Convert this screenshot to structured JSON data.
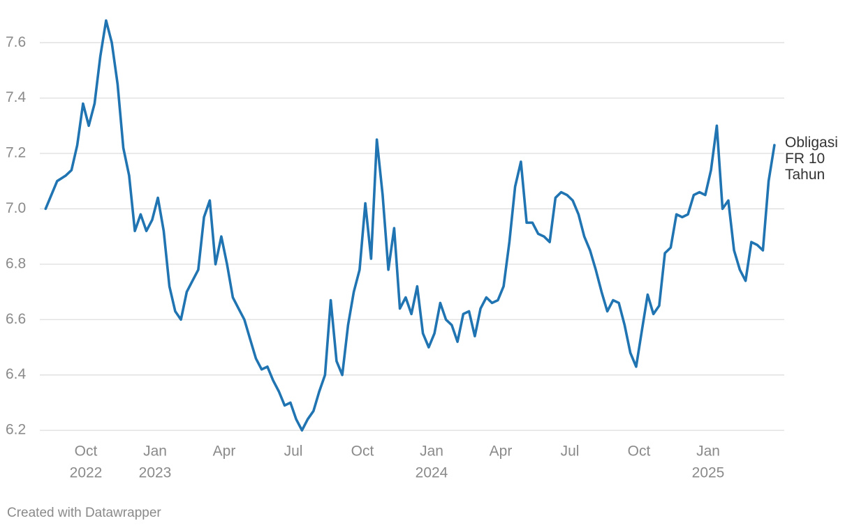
{
  "chart_data": {
    "type": "line",
    "x": [
      "2022-08",
      "2022-08",
      "2022-09",
      "2022-09",
      "2022-09",
      "2022-09",
      "2022-10",
      "2022-10",
      "2022-10",
      "2022-10",
      "2022-11",
      "2022-11",
      "2022-11",
      "2022-11",
      "2022-12",
      "2022-12",
      "2022-12",
      "2022-12",
      "2023-01",
      "2023-01",
      "2023-01",
      "2023-01",
      "2023-02",
      "2023-02",
      "2023-02",
      "2023-02",
      "2023-03",
      "2023-03",
      "2023-03",
      "2023-03",
      "2023-04",
      "2023-04",
      "2023-04",
      "2023-04",
      "2023-05",
      "2023-05",
      "2023-05",
      "2023-05",
      "2023-06",
      "2023-06",
      "2023-06",
      "2023-06",
      "2023-07",
      "2023-07",
      "2023-07",
      "2023-07",
      "2023-08",
      "2023-08",
      "2023-08",
      "2023-08",
      "2023-09",
      "2023-09",
      "2023-09",
      "2023-09",
      "2023-10",
      "2023-10",
      "2023-10",
      "2023-10",
      "2023-11",
      "2023-11",
      "2023-11",
      "2023-11",
      "2023-12",
      "2023-12",
      "2023-12",
      "2023-12",
      "2024-01",
      "2024-01",
      "2024-01",
      "2024-01",
      "2024-02",
      "2024-02",
      "2024-02",
      "2024-02",
      "2024-03",
      "2024-03",
      "2024-03",
      "2024-03",
      "2024-04",
      "2024-04",
      "2024-04",
      "2024-04",
      "2024-05",
      "2024-05",
      "2024-05",
      "2024-05",
      "2024-06",
      "2024-06",
      "2024-06",
      "2024-06",
      "2024-07",
      "2024-07",
      "2024-07",
      "2024-07",
      "2024-08",
      "2024-08",
      "2024-08",
      "2024-08",
      "2024-09",
      "2024-09",
      "2024-09",
      "2024-09",
      "2024-10",
      "2024-10",
      "2024-10",
      "2024-10",
      "2024-11",
      "2024-11",
      "2024-11",
      "2024-11",
      "2024-12",
      "2024-12",
      "2024-12",
      "2024-12",
      "2025-01",
      "2025-01",
      "2025-01",
      "2025-01",
      "2025-02",
      "2025-02",
      "2025-02",
      "2025-02",
      "2025-03",
      "2025-03",
      "2025-03",
      "2025-03"
    ],
    "series": [
      {
        "name": "Obligasi FR 10 Tahun",
        "color": "#1f74b1",
        "values": [
          7.0,
          7.1,
          7.12,
          7.14,
          7.23,
          7.38,
          7.3,
          7.38,
          7.55,
          7.68,
          7.6,
          7.45,
          7.22,
          7.12,
          6.92,
          6.98,
          6.92,
          6.96,
          7.04,
          6.92,
          6.72,
          6.63,
          6.6,
          6.7,
          6.74,
          6.78,
          6.97,
          7.03,
          6.8,
          6.9,
          6.8,
          6.68,
          6.64,
          6.6,
          6.53,
          6.46,
          6.42,
          6.43,
          6.38,
          6.34,
          6.29,
          6.3,
          6.24,
          6.2,
          6.24,
          6.27,
          6.34,
          6.4,
          6.67,
          6.45,
          6.4,
          6.58,
          6.7,
          6.78,
          7.02,
          6.82,
          7.25,
          7.05,
          6.78,
          6.93,
          6.64,
          6.68,
          6.62,
          6.72,
          6.55,
          6.5,
          6.55,
          6.66,
          6.6,
          6.58,
          6.52,
          6.62,
          6.63,
          6.54,
          6.64,
          6.68,
          6.66,
          6.67,
          6.72,
          6.88,
          7.08,
          7.17,
          6.95,
          6.95,
          6.91,
          6.9,
          6.88,
          7.04,
          7.06,
          7.05,
          7.03,
          6.98,
          6.9,
          6.85,
          6.78,
          6.7,
          6.63,
          6.67,
          6.66,
          6.58,
          6.48,
          6.43,
          6.56,
          6.69,
          6.62,
          6.65,
          6.84,
          6.86,
          6.98,
          6.97,
          6.98,
          7.05,
          7.06,
          7.05,
          7.14,
          7.3,
          7.0,
          7.03,
          6.85,
          6.78,
          6.74,
          6.88,
          6.87,
          6.85,
          7.1,
          7.23
        ]
      }
    ],
    "xlim": [
      "2022-08",
      "2025-03"
    ],
    "xticks": [
      {
        "value": "2022-10",
        "label": [
          "Oct",
          "2022"
        ]
      },
      {
        "value": "2023-01",
        "label": [
          "Jan",
          "2023"
        ]
      },
      {
        "value": "2023-04",
        "label": [
          "Apr"
        ]
      },
      {
        "value": "2023-07",
        "label": [
          "Jul"
        ]
      },
      {
        "value": "2023-10",
        "label": [
          "Oct"
        ]
      },
      {
        "value": "2024-01",
        "label": [
          "Jan",
          "2024"
        ]
      },
      {
        "value": "2024-04",
        "label": [
          "Apr"
        ]
      },
      {
        "value": "2024-07",
        "label": [
          "Jul"
        ]
      },
      {
        "value": "2024-10",
        "label": [
          "Oct"
        ]
      },
      {
        "value": "2025-01",
        "label": [
          "Jan",
          "2025"
        ]
      }
    ],
    "ylim": [
      6.17,
      7.7
    ],
    "yticks": [
      {
        "value": 6.2,
        "label": "6.2"
      },
      {
        "value": 6.4,
        "label": "6.4"
      },
      {
        "value": 6.6,
        "label": "6.6"
      },
      {
        "value": 6.8,
        "label": "6.8"
      },
      {
        "value": 7.0,
        "label": "7.0"
      },
      {
        "value": 7.2,
        "label": "7.2"
      },
      {
        "value": 7.4,
        "label": "7.4"
      },
      {
        "value": 7.6,
        "label": "7.6"
      }
    ],
    "grid": true,
    "footer": "Created with Datawrapper"
  }
}
